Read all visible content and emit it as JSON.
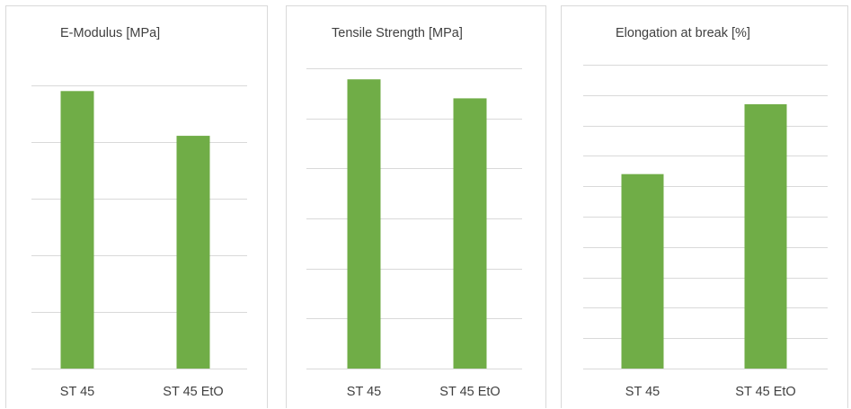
{
  "chart_data": [
    {
      "type": "bar",
      "title": "E-Modulus [MPa]",
      "categories": [
        "ST 45",
        "ST 45 EtO"
      ],
      "series": [
        {
          "values": [
            4.9,
            4.11
          ]
        }
      ],
      "ylim": [
        0,
        5
      ],
      "grid": true,
      "legend": "none",
      "y_tick_labels_shown": false,
      "bar_color": "#70ad47"
    },
    {
      "type": "bar",
      "title": "Tensile Strength  [MPa]",
      "categories": [
        "ST 45",
        "ST 45 EtO"
      ],
      "series": [
        {
          "values": [
            5.78,
            5.4
          ]
        }
      ],
      "ylim": [
        0,
        6
      ],
      "grid": true,
      "legend": "none",
      "y_tick_labels_shown": false,
      "bar_color": "#70ad47"
    },
    {
      "type": "bar",
      "title": "Elongation at break [%]",
      "categories": [
        "ST 45",
        "ST 45 EtO"
      ],
      "series": [
        {
          "values": [
            6.4,
            8.7
          ]
        }
      ],
      "ylim": [
        0,
        10
      ],
      "grid": true,
      "legend": "none",
      "y_tick_labels_shown": false,
      "bar_color": "#70ad47"
    }
  ]
}
